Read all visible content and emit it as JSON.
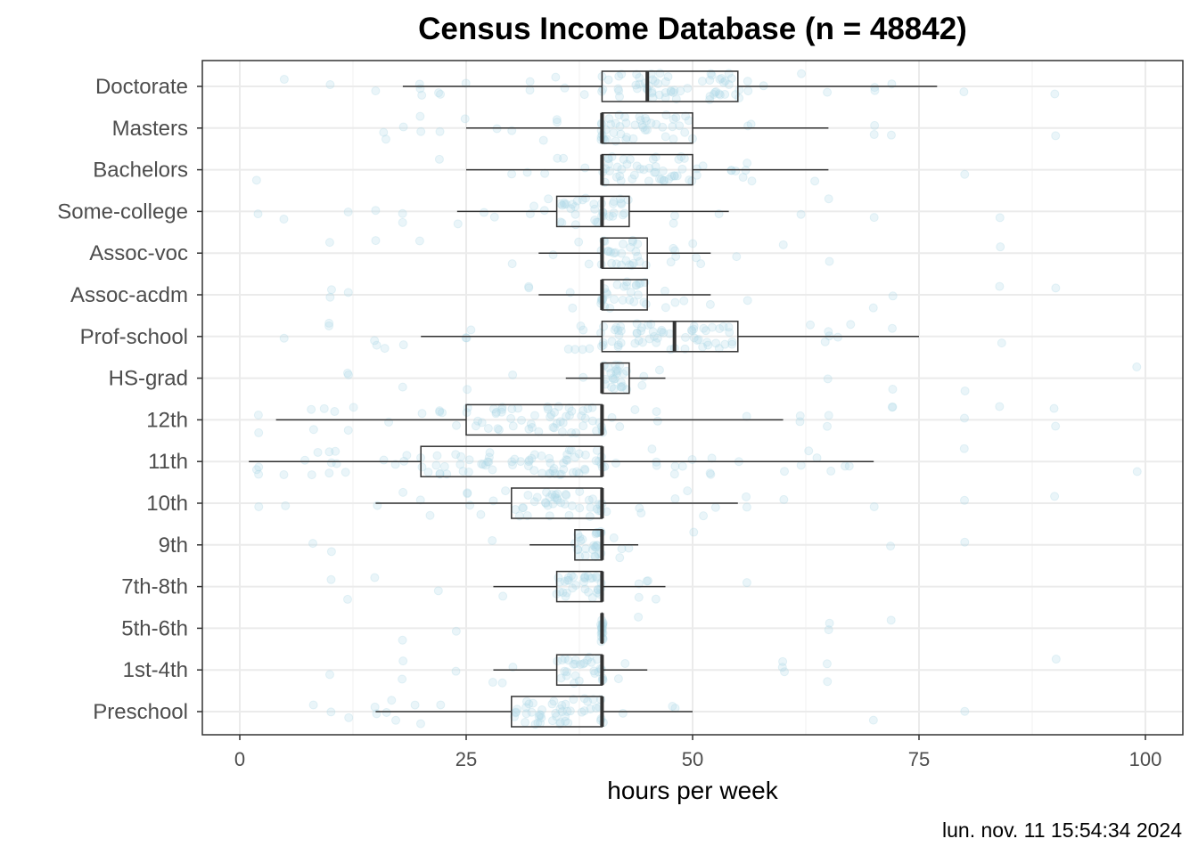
{
  "chart_data": {
    "type": "boxplot",
    "title": "Census Income Database (n = 48842)",
    "xlabel": "hours per week",
    "ylabel": "",
    "xlim": [
      0,
      100
    ],
    "x_ticks": [
      0,
      25,
      50,
      75,
      100
    ],
    "caption": "lun. nov. 11 15:54:34 2024",
    "grid": true,
    "jitter_points": true,
    "point_color": "#add8e6",
    "box_color": "#333333",
    "categories": [
      "Doctorate",
      "Masters",
      "Bachelors",
      "Some-college",
      "Assoc-voc",
      "Assoc-acdm",
      "Prof-school",
      "HS-grad",
      "12th",
      "11th",
      "10th",
      "9th",
      "7th-8th",
      "5th-6th",
      "1st-4th",
      "Preschool"
    ],
    "boxes": [
      {
        "category": "Doctorate",
        "whisker_low": 18,
        "q1": 40,
        "median": 45,
        "q3": 55,
        "whisker_high": 77
      },
      {
        "category": "Masters",
        "whisker_low": 25,
        "q1": 40,
        "median": 40,
        "q3": 50,
        "whisker_high": 65
      },
      {
        "category": "Bachelors",
        "whisker_low": 25,
        "q1": 40,
        "median": 40,
        "q3": 50,
        "whisker_high": 65
      },
      {
        "category": "Some-college",
        "whisker_low": 24,
        "q1": 35,
        "median": 40,
        "q3": 43,
        "whisker_high": 54
      },
      {
        "category": "Assoc-voc",
        "whisker_low": 33,
        "q1": 40,
        "median": 40,
        "q3": 45,
        "whisker_high": 52
      },
      {
        "category": "Assoc-acdm",
        "whisker_low": 33,
        "q1": 40,
        "median": 40,
        "q3": 45,
        "whisker_high": 52
      },
      {
        "category": "Prof-school",
        "whisker_low": 20,
        "q1": 40,
        "median": 48,
        "q3": 55,
        "whisker_high": 75
      },
      {
        "category": "HS-grad",
        "whisker_low": 36,
        "q1": 40,
        "median": 40,
        "q3": 43,
        "whisker_high": 47
      },
      {
        "category": "12th",
        "whisker_low": 4,
        "q1": 25,
        "median": 40,
        "q3": 40,
        "whisker_high": 60
      },
      {
        "category": "11th",
        "whisker_low": 1,
        "q1": 20,
        "median": 40,
        "q3": 40,
        "whisker_high": 70
      },
      {
        "category": "10th",
        "whisker_low": 15,
        "q1": 30,
        "median": 40,
        "q3": 40,
        "whisker_high": 55
      },
      {
        "category": "9th",
        "whisker_low": 32,
        "q1": 37,
        "median": 40,
        "q3": 40,
        "whisker_high": 44
      },
      {
        "category": "7th-8th",
        "whisker_low": 28,
        "q1": 35,
        "median": 40,
        "q3": 40,
        "whisker_high": 47
      },
      {
        "category": "5th-6th",
        "whisker_low": 40,
        "q1": 40,
        "median": 40,
        "q3": 40,
        "whisker_high": 40
      },
      {
        "category": "1st-4th",
        "whisker_low": 28,
        "q1": 35,
        "median": 40,
        "q3": 40,
        "whisker_high": 45
      },
      {
        "category": "Preschool",
        "whisker_low": 15,
        "q1": 30,
        "median": 40,
        "q3": 40,
        "whisker_high": 50
      }
    ]
  }
}
